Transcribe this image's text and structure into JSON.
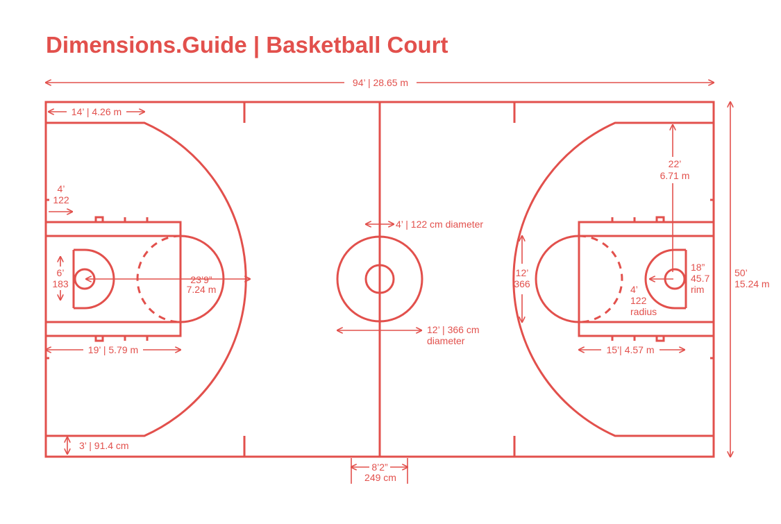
{
  "title": "Dimensions.Guide | Basketball Court",
  "accent_color": "#e2504c",
  "labels": {
    "court_length": "94’ | 28.65 m",
    "court_width_ft": "50’",
    "court_width_m": "15.24 m",
    "corner_three_length": "14’ | 4.26 m",
    "baseline_to_backboard_ft": "4’",
    "baseline_to_backboard_cm": "122",
    "backboard_width_ft": "6’",
    "backboard_width_cm": "183",
    "three_point_radius_ft": "23’9”",
    "three_point_radius_m": "7.24 m",
    "free_throw_line_distance": "19’ | 5.79 m",
    "inbound_line": "3’ | 91.4 cm",
    "inner_circle": "4’ | 122 cm diameter",
    "center_circle_size": "12’ | 366 cm",
    "center_circle_unit": "diameter",
    "substitution_box_ft": "8’2”",
    "substitution_box_cm": "249 cm",
    "corner_three_sideline_ft": "22’",
    "corner_three_sideline_m": "6.71 m",
    "lane_width_ft": "12’",
    "lane_width_cm": "366",
    "rim_ft": "18”",
    "rim_cm": "45.7",
    "rim_word": "rim",
    "restricted_ft": "4’",
    "restricted_cm": "122",
    "restricted_word": "radius",
    "lane_length": "15’| 4.57 m"
  }
}
